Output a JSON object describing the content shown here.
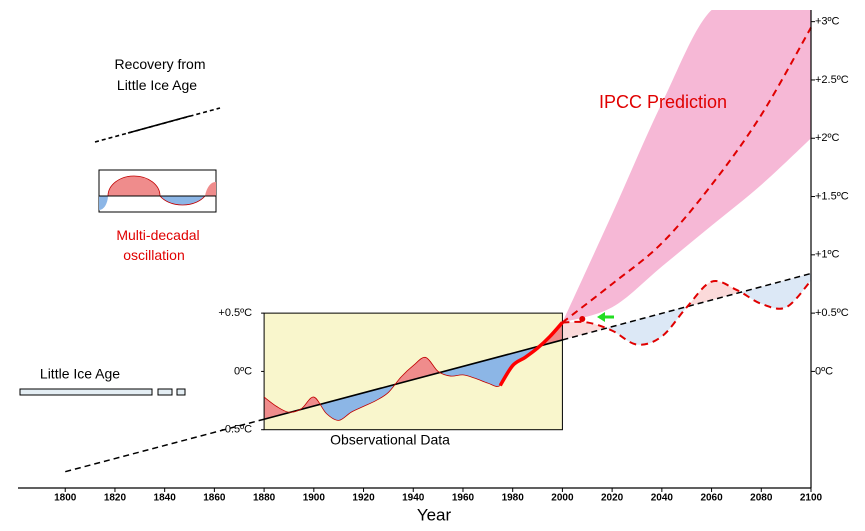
{
  "chart_data": {
    "type": "line",
    "xlabel": "Year",
    "xlim": [
      1781,
      2100
    ],
    "xticks": [
      1800,
      1820,
      1840,
      1860,
      1880,
      1900,
      1920,
      1940,
      1960,
      1980,
      2000,
      2020,
      2040,
      2060,
      2080,
      2100
    ],
    "ylim": [
      -1.0,
      3.1
    ],
    "yticks": [
      {
        "value": 0,
        "label": "0ºC"
      },
      {
        "value": 0.5,
        "label": "+0.5ºC"
      },
      {
        "value": 1,
        "label": "+1ºC"
      },
      {
        "value": 1.5,
        "label": "+1.5ºC"
      },
      {
        "value": 2,
        "label": "+2ºC"
      },
      {
        "value": 2.5,
        "label": "+2.5ºC"
      },
      {
        "value": 3,
        "label": "+3ºC"
      }
    ],
    "inset_yticks": [
      {
        "value": 0.5,
        "label": "+0.5ºC"
      },
      {
        "value": 0,
        "label": "0ºC"
      },
      {
        "value": -0.5,
        "label": "-0.5ºC"
      }
    ],
    "trend": {
      "x": [
        1800,
        1880,
        2000,
        2100
      ],
      "values": [
        -0.86,
        -0.41,
        0.27,
        0.84
      ],
      "color": "#000000",
      "segment_styles": [
        "dashed",
        "solid",
        "dashed"
      ]
    },
    "observed": {
      "x": [
        1880,
        1885,
        1890,
        1895,
        1900,
        1905,
        1910,
        1915,
        1920,
        1925,
        1930,
        1935,
        1940,
        1945,
        1950,
        1955,
        1960,
        1965,
        1970,
        1975,
        1980,
        1985,
        1990,
        1995,
        2000
      ],
      "values": [
        -0.22,
        -0.3,
        -0.35,
        -0.32,
        -0.22,
        -0.36,
        -0.42,
        -0.35,
        -0.3,
        -0.25,
        -0.18,
        -0.05,
        0.05,
        0.12,
        0.0,
        -0.04,
        -0.03,
        -0.06,
        -0.1,
        -0.12,
        0.05,
        0.12,
        0.2,
        0.3,
        0.42
      ],
      "color": "#c00000",
      "highlight_from": 1975,
      "fill_above": "#ef8c8c",
      "fill_below": "#8cb6e6"
    },
    "projection": {
      "x": [
        2000,
        2010,
        2020,
        2030,
        2040,
        2050,
        2060,
        2070,
        2080,
        2090,
        2100
      ],
      "values": [
        0.42,
        0.42,
        0.35,
        0.23,
        0.3,
        0.55,
        0.77,
        0.7,
        0.58,
        0.55,
        0.78
      ],
      "color": "#e00000",
      "fill_above": "#fbdada",
      "fill_below": "#dce8f6"
    },
    "ipcc": {
      "x": [
        2000,
        2020,
        2040,
        2060,
        2080,
        2100
      ],
      "values": [
        0.42,
        0.75,
        1.1,
        1.6,
        2.2,
        2.95
      ],
      "color": "#e00000",
      "upper": [
        0.42,
        1.35,
        2.3,
        3.1,
        3.1,
        3.1
      ],
      "lower": [
        0.42,
        0.55,
        0.9,
        1.25,
        1.6,
        2.0
      ],
      "band_color": "#f6b8d6"
    },
    "point": {
      "x": 2008,
      "value": 0.45,
      "color": "#e00000"
    },
    "annotations": {
      "recovery": [
        "Recovery from",
        "Little  Ice Age"
      ],
      "oscillation": [
        "Multi-decadal",
        "oscillation"
      ],
      "prediction": "IPCC Prediction",
      "little_ice_age": "Little Ice Age",
      "observational": "Observational Data"
    }
  }
}
